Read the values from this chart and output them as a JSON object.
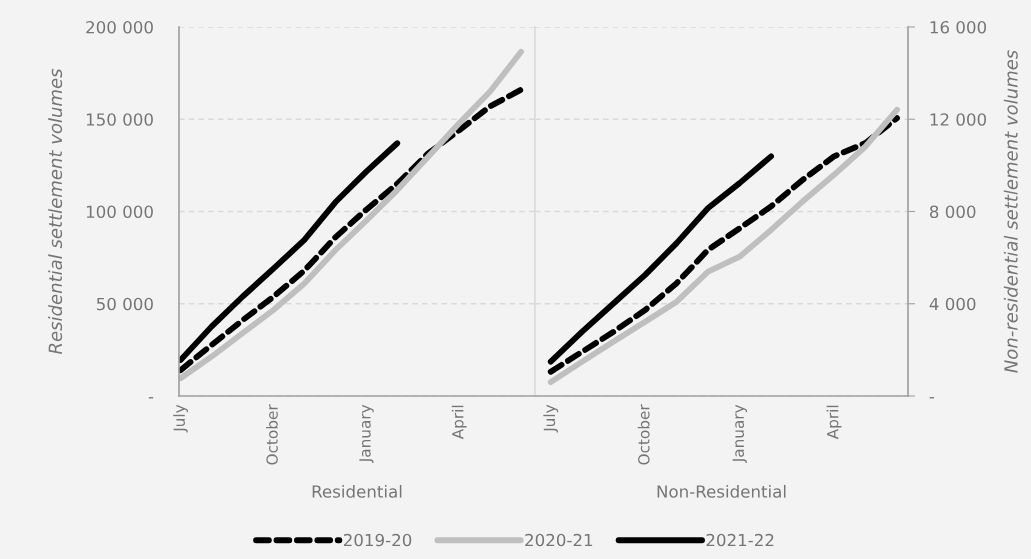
{
  "chart_data": [
    {
      "type": "line",
      "xlabel": "Residential",
      "ylabel": "Residential settlement volumes",
      "categories": [
        "July",
        null,
        null,
        "October",
        null,
        null,
        "January",
        null,
        null,
        "April",
        null,
        null
      ],
      "series": [
        {
          "name": "2019-20",
          "color": "#000000",
          "line_style": "dashed",
          "values": [
            14000,
            27600,
            41000,
            53800,
            68000,
            86000,
            101000,
            115000,
            131500,
            144000,
            157000,
            166000
          ]
        },
        {
          "name": "2020-21",
          "color": "#bfbfbf",
          "line_style": "solid",
          "values": [
            9600,
            21300,
            34000,
            46600,
            61000,
            79000,
            95000,
            111600,
            129700,
            147800,
            165000,
            186600
          ]
        },
        {
          "name": "2021-22",
          "color": "#000000",
          "line_style": "solid",
          "values": [
            19500,
            37600,
            53800,
            69000,
            84600,
            105000,
            121600,
            137000,
            null,
            null,
            null,
            null
          ]
        }
      ],
      "ylim": [
        0,
        200000
      ],
      "yticks": [
        {
          "value": 0,
          "label": "-"
        },
        {
          "value": 50000,
          "label": "50 000"
        },
        {
          "value": 100000,
          "label": "100 000"
        },
        {
          "value": 150000,
          "label": "150 000"
        },
        {
          "value": 200000,
          "label": "200 000"
        }
      ],
      "grid": "y",
      "legend": "bottom"
    },
    {
      "type": "line",
      "xlabel": "Non-Residential",
      "y2label": "Non-residential settlement volumes",
      "categories": [
        "July",
        null,
        null,
        "October",
        null,
        null,
        "January",
        null,
        null,
        "April",
        null,
        null
      ],
      "series": [
        {
          "name": "2019-20",
          "color": "#000000",
          "line_style": "dashed",
          "axis": "y2",
          "values": [
            1050,
            1920,
            2790,
            3730,
            4890,
            6340,
            7270,
            8220,
            9370,
            10390,
            10970,
            12050
          ]
        },
        {
          "name": "2020-21",
          "color": "#bfbfbf",
          "line_style": "solid",
          "axis": "y2",
          "values": [
            600,
            1490,
            2360,
            3220,
            4090,
            5390,
            6040,
            7200,
            8430,
            9590,
            10820,
            12410
          ]
        },
        {
          "name": "2021-22",
          "color": "#000000",
          "line_style": "solid",
          "axis": "y2",
          "values": [
            1490,
            2790,
            4020,
            5250,
            6630,
            8150,
            9230,
            10390,
            null,
            null,
            null,
            null
          ]
        }
      ],
      "y2lim": [
        0,
        16000
      ],
      "y2ticks": [
        {
          "value": 0,
          "label": "-"
        },
        {
          "value": 4000,
          "label": "4 000"
        },
        {
          "value": 8000,
          "label": "8 000"
        },
        {
          "value": 12000,
          "label": "12 000"
        },
        {
          "value": 16000,
          "label": "16 000"
        }
      ],
      "grid": "y"
    }
  ]
}
